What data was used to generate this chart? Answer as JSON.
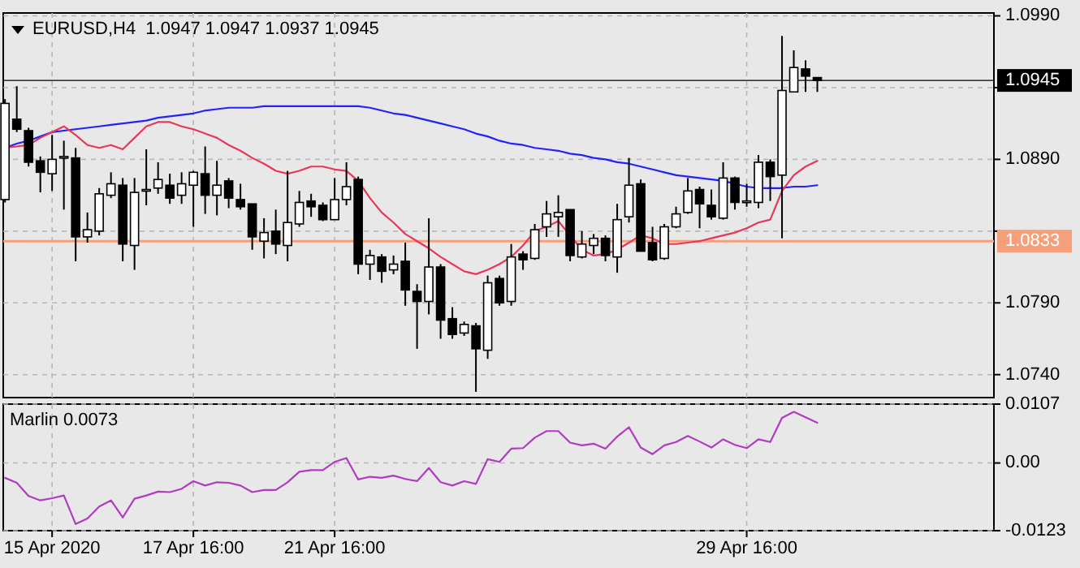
{
  "chart_data": [
    {
      "type": "candlestick",
      "title": "EURUSD,H4  1.0947 1.0947 1.0937 1.0945",
      "grid": true,
      "categories": [
        null,
        null,
        null,
        null,
        null,
        null,
        null,
        null,
        null,
        null,
        null,
        null,
        null,
        null,
        null,
        null,
        null,
        null,
        null,
        null,
        null,
        null,
        null,
        null,
        null,
        null,
        null,
        null,
        null,
        null,
        null,
        null,
        null,
        null,
        null,
        null,
        null,
        null,
        null,
        null,
        null,
        null,
        null,
        null,
        null,
        null,
        null,
        null,
        null,
        null,
        null,
        null,
        null,
        null,
        null,
        null,
        null,
        null,
        null,
        null,
        null,
        null,
        null,
        null,
        null,
        null,
        null,
        null,
        null,
        null
      ],
      "ohlc": [
        [
          1.0862,
          1.0932,
          1.086,
          1.0929
        ],
        [
          1.0918,
          1.0941,
          1.0909,
          1.0911
        ],
        [
          1.091,
          1.0912,
          1.0885,
          1.0888
        ],
        [
          1.0889,
          1.0892,
          1.0867,
          1.0881
        ],
        [
          1.088,
          1.0907,
          1.0868,
          1.089
        ],
        [
          1.0892,
          1.0903,
          1.0855,
          1.0892
        ],
        [
          1.0891,
          1.0898,
          1.0819,
          1.0836
        ],
        [
          1.0836,
          1.0853,
          1.0832,
          1.0841
        ],
        [
          1.084,
          1.087,
          1.0837,
          1.0866
        ],
        [
          1.0865,
          1.0881,
          1.0863,
          1.0873
        ],
        [
          1.0872,
          1.0877,
          1.0819,
          1.0831
        ],
        [
          1.083,
          1.0877,
          1.0813,
          1.0867
        ],
        [
          1.0869,
          1.0897,
          1.0858,
          1.0869
        ],
        [
          1.087,
          1.0888,
          1.0866,
          1.0876
        ],
        [
          1.0872,
          1.088,
          1.0859,
          1.0863
        ],
        [
          1.0865,
          1.0881,
          1.0859,
          1.0873
        ],
        [
          1.0872,
          1.0882,
          1.0843,
          1.0881
        ],
        [
          1.088,
          1.0899,
          1.0852,
          1.0865
        ],
        [
          1.0865,
          1.0889,
          1.0851,
          1.0872
        ],
        [
          1.0875,
          1.0877,
          1.0856,
          1.0863
        ],
        [
          1.0862,
          1.0873,
          1.0855,
          1.0857
        ],
        [
          1.0859,
          1.0859,
          1.0827,
          1.0836
        ],
        [
          1.0833,
          1.0849,
          1.0821,
          1.0839
        ],
        [
          1.084,
          1.0855,
          1.0824,
          1.0831
        ],
        [
          1.083,
          1.0882,
          1.0819,
          1.0846
        ],
        [
          1.0845,
          1.0868,
          1.0843,
          1.086
        ],
        [
          1.0861,
          1.0866,
          1.085,
          1.0857
        ],
        [
          1.0858,
          1.086,
          1.0847,
          1.0848
        ],
        [
          1.0848,
          1.0877,
          1.0848,
          1.0862
        ],
        [
          1.0862,
          1.0888,
          1.0858,
          1.0871
        ],
        [
          1.0876,
          1.0878,
          1.081,
          1.0817
        ],
        [
          1.0817,
          1.0827,
          1.0806,
          1.0823
        ],
        [
          1.0822,
          1.0824,
          1.0804,
          1.0812
        ],
        [
          1.0813,
          1.0823,
          1.081,
          1.0817
        ],
        [
          1.0819,
          1.0832,
          1.0788,
          1.0799
        ],
        [
          1.0798,
          1.0803,
          1.0758,
          1.0791
        ],
        [
          1.0791,
          1.0849,
          1.0782,
          1.0815
        ],
        [
          1.0815,
          1.0817,
          1.0765,
          1.0778
        ],
        [
          1.0779,
          1.0787,
          1.0765,
          1.0768
        ],
        [
          1.0769,
          1.0777,
          1.0767,
          1.0775
        ],
        [
          1.0774,
          1.0776,
          1.0728,
          1.0758
        ],
        [
          1.0757,
          1.0809,
          1.0751,
          1.0804
        ],
        [
          1.0807,
          1.0809,
          1.0788,
          1.079
        ],
        [
          1.0791,
          1.0831,
          1.0788,
          1.0822
        ],
        [
          1.0824,
          1.0826,
          1.0813,
          1.082
        ],
        [
          1.0821,
          1.0845,
          1.082,
          1.0841
        ],
        [
          1.0843,
          1.0861,
          1.0836,
          1.0852
        ],
        [
          1.085,
          1.0865,
          1.0836,
          1.0853
        ],
        [
          1.0855,
          1.0855,
          1.0819,
          1.0823
        ],
        [
          1.0822,
          1.084,
          1.0821,
          1.0831
        ],
        [
          1.083,
          1.0838,
          1.0824,
          1.0835
        ],
        [
          1.0835,
          1.0837,
          1.0819,
          1.0823
        ],
        [
          1.0822,
          1.0859,
          1.0811,
          1.0848
        ],
        [
          1.085,
          1.0891,
          1.0846,
          1.0872
        ],
        [
          1.0873,
          1.0876,
          1.0826,
          1.0826
        ],
        [
          1.0832,
          1.0843,
          1.0819,
          1.082
        ],
        [
          1.0821,
          1.0845,
          1.082,
          1.0843
        ],
        [
          1.0843,
          1.0857,
          1.0842,
          1.0852
        ],
        [
          1.0853,
          1.0877,
          1.0852,
          1.0868
        ],
        [
          1.0869,
          1.0871,
          1.0842,
          1.0859
        ],
        [
          1.0858,
          1.0869,
          1.0848,
          1.085
        ],
        [
          1.0849,
          1.0888,
          1.0848,
          1.0877
        ],
        [
          1.0877,
          1.0878,
          1.0855,
          1.086
        ],
        [
          1.0861,
          1.0873,
          1.0857,
          1.0861
        ],
        [
          1.086,
          1.0893,
          1.0856,
          1.0888
        ],
        [
          1.0888,
          1.089,
          1.0861,
          1.0878
        ],
        [
          1.0879,
          1.0976,
          1.0835,
          1.0938
        ],
        [
          1.0937,
          1.0966,
          1.0937,
          1.0954
        ],
        [
          1.0953,
          1.0959,
          1.0937,
          1.0948
        ],
        [
          1.0947,
          1.0947,
          1.0937,
          1.0945
        ]
      ],
      "series": [
        {
          "type": "line",
          "color": "#2222ff",
          "values": [
            1.0898,
            1.0901,
            1.0903,
            1.0906,
            1.0909,
            1.091,
            1.0911,
            1.0912,
            1.0913,
            1.0914,
            1.0915,
            1.0916,
            1.0917,
            1.0919,
            1.092,
            1.0921,
            1.0922,
            1.0924,
            1.0925,
            1.0926,
            1.0926,
            1.0926,
            1.0927,
            1.0927,
            1.0927,
            1.0927,
            1.0927,
            1.0927,
            1.0927,
            1.0927,
            1.0927,
            1.0926,
            1.0924,
            1.0922,
            1.0921,
            1.0919,
            1.0917,
            1.0915,
            1.0913,
            1.0911,
            1.0908,
            1.0906,
            1.0903,
            1.0901,
            1.09,
            1.0898,
            1.0897,
            1.0896,
            1.0894,
            1.0893,
            1.0891,
            1.089,
            1.0888,
            1.0887,
            1.0885,
            1.0883,
            1.0881,
            1.0879,
            1.0878,
            1.0877,
            1.0876,
            1.0875,
            1.0873,
            1.0871,
            1.087,
            1.087,
            1.087,
            1.0871,
            1.0871,
            1.0872
          ]
        },
        {
          "type": "line",
          "color": "#e8385a",
          "values": [
            1.0898,
            1.0899,
            1.09,
            1.0905,
            1.0909,
            1.0913,
            1.0907,
            1.09,
            1.0898,
            1.09,
            1.0897,
            1.0905,
            1.0913,
            1.0916,
            1.0916,
            1.0913,
            1.0911,
            1.0908,
            1.0905,
            1.09,
            1.0896,
            1.0891,
            1.0887,
            1.0882,
            1.088,
            1.0882,
            1.0885,
            1.0885,
            1.0883,
            1.0882,
            1.0875,
            1.0863,
            1.0853,
            1.0846,
            1.0838,
            1.0833,
            1.0828,
            1.0822,
            1.0817,
            1.0812,
            1.081,
            1.0813,
            1.0817,
            1.0822,
            1.083,
            1.084,
            1.0843,
            1.0847,
            1.0837,
            1.0827,
            1.0823,
            1.0824,
            1.0827,
            1.0832,
            1.0837,
            1.0835,
            1.0831,
            1.0831,
            1.0832,
            1.0833,
            1.0835,
            1.0837,
            1.0839,
            1.0842,
            1.0846,
            1.0848,
            1.0868,
            1.0879,
            1.0885,
            1.0889
          ]
        }
      ],
      "ylim": [
        1.0724,
        1.0992
      ],
      "yticks": [
        {
          "value": 1.099,
          "label": "1.0990"
        },
        {
          "value": 1.094,
          "label": null
        },
        {
          "value": 1.089,
          "label": "1.0890"
        },
        {
          "value": 1.084,
          "label": null
        },
        {
          "value": 1.079,
          "label": "1.0790"
        },
        {
          "value": 1.074,
          "label": "1.0740"
        }
      ],
      "ref_lines": [
        {
          "axis": "y",
          "value": 1.0833,
          "label": "1.0833",
          "color": "#f5a07a"
        },
        {
          "axis": "y",
          "value": 1.0945,
          "label": "1.0945",
          "color": "#000000"
        }
      ]
    },
    {
      "type": "line",
      "title": "Marlin 0.0073",
      "grid": true,
      "categories": [
        null,
        null,
        null,
        null,
        "15 Apr 2020",
        null,
        null,
        null,
        null,
        null,
        null,
        null,
        null,
        null,
        null,
        null,
        "17 Apr 16:00",
        null,
        null,
        null,
        null,
        null,
        null,
        null,
        null,
        null,
        null,
        null,
        "21 Apr 16:00",
        null,
        null,
        null,
        null,
        null,
        null,
        null,
        null,
        null,
        null,
        null,
        null,
        null,
        null,
        null,
        null,
        null,
        null,
        null,
        null,
        null,
        null,
        null,
        null,
        null,
        null,
        null,
        null,
        null,
        null,
        null,
        null,
        null,
        null,
        "29 Apr 16:00",
        null,
        null,
        null,
        null,
        null,
        null
      ],
      "series": [
        {
          "color": "#b03cc0",
          "values": [
            -0.0027,
            -0.0036,
            -0.006,
            -0.0068,
            -0.0064,
            -0.0059,
            -0.0111,
            -0.0101,
            -0.0079,
            -0.0068,
            -0.0099,
            -0.0065,
            -0.0059,
            -0.0052,
            -0.0053,
            -0.0047,
            -0.0033,
            -0.0041,
            -0.0035,
            -0.0036,
            -0.0041,
            -0.0053,
            -0.0049,
            -0.0049,
            -0.0035,
            -0.0016,
            -0.0013,
            -0.0013,
            0.0002,
            0.0009,
            -0.003,
            -0.0025,
            -0.0027,
            -0.0023,
            -0.0029,
            -0.0033,
            -0.0009,
            -0.0035,
            -0.0041,
            -0.0033,
            -0.0038,
            0.0007,
            0.0002,
            0.0026,
            0.0027,
            0.0046,
            0.0058,
            0.0058,
            0.0037,
            0.0032,
            0.0035,
            0.0026,
            0.0048,
            0.0065,
            0.0028,
            0.0016,
            0.0032,
            0.0038,
            0.0049,
            0.0039,
            0.0028,
            0.0043,
            0.0033,
            0.0027,
            0.0043,
            0.0038,
            0.0082,
            0.0093,
            0.0083,
            0.0073
          ]
        }
      ],
      "ylim": [
        -0.0123,
        0.0107
      ],
      "yticks": [
        0.0107,
        {
          "value": 0,
          "label": "0.00"
        },
        -0.0123
      ]
    }
  ]
}
